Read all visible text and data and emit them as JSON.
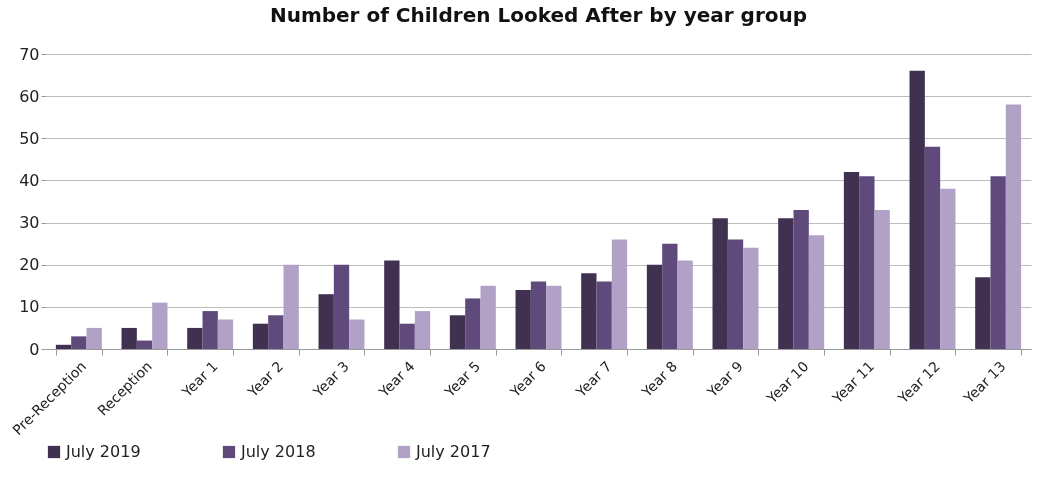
{
  "chart_data": {
    "type": "bar",
    "title": "Number of Children Looked After by year group",
    "categories": [
      "Pre-Reception",
      "Reception",
      "Year 1",
      "Year 2",
      "Year 3",
      "Year 4",
      "Year 5",
      "Year 6",
      "Year 7",
      "Year 8",
      "Year 9",
      "Year 10",
      "Year 11",
      "Year 12",
      "Year 13"
    ],
    "series": [
      {
        "name": "July 2019",
        "color": "#403151",
        "values": [
          1,
          5,
          5,
          6,
          13,
          21,
          8,
          14,
          18,
          20,
          31,
          31,
          42,
          66,
          17
        ]
      },
      {
        "name": "July 2018",
        "color": "#604a7b",
        "values": [
          3,
          2,
          9,
          8,
          20,
          6,
          12,
          16,
          16,
          25,
          26,
          33,
          41,
          48,
          41
        ]
      },
      {
        "name": "July 2017",
        "color": "#b2a1c7",
        "values": [
          5,
          11,
          7,
          20,
          7,
          9,
          15,
          15,
          26,
          21,
          24,
          27,
          33,
          38,
          58
        ]
      }
    ],
    "ylim": [
      0,
      70
    ],
    "yticks": [
      0,
      10,
      20,
      30,
      40,
      50,
      60,
      70
    ],
    "grid": "y",
    "legend": "bottom"
  }
}
